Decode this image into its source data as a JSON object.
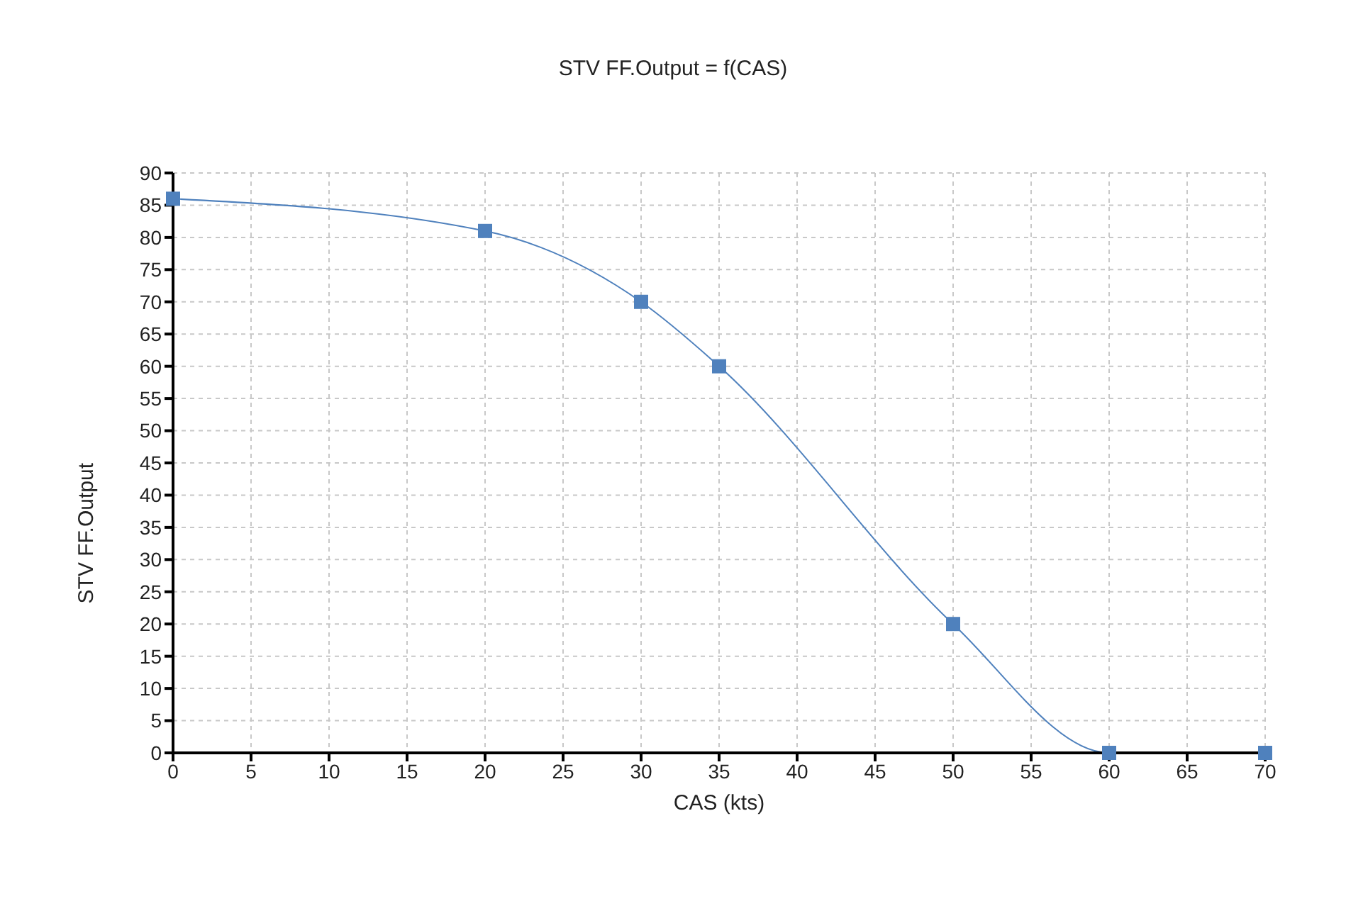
{
  "chart_data": {
    "type": "line",
    "title": "STV FF.Output = f(CAS)",
    "xlabel": "CAS (kts)",
    "ylabel": "STV FF.Output",
    "x": [
      0,
      20,
      30,
      35,
      50,
      60,
      70
    ],
    "series": [
      {
        "color": "#4f81bd",
        "values": [
          86,
          81,
          70,
          60,
          20,
          0,
          0
        ]
      }
    ],
    "xlim": [
      0,
      70
    ],
    "xticks": [
      0,
      5,
      10,
      15,
      20,
      25,
      30,
      35,
      40,
      45,
      50,
      55,
      60,
      65,
      70
    ],
    "ylim": [
      0,
      90
    ],
    "yticks": [
      0,
      5,
      10,
      15,
      20,
      25,
      30,
      35,
      40,
      45,
      50,
      55,
      60,
      65,
      70,
      75,
      80,
      85,
      90
    ],
    "grid": true,
    "marker": "square",
    "line_style": "solid"
  }
}
